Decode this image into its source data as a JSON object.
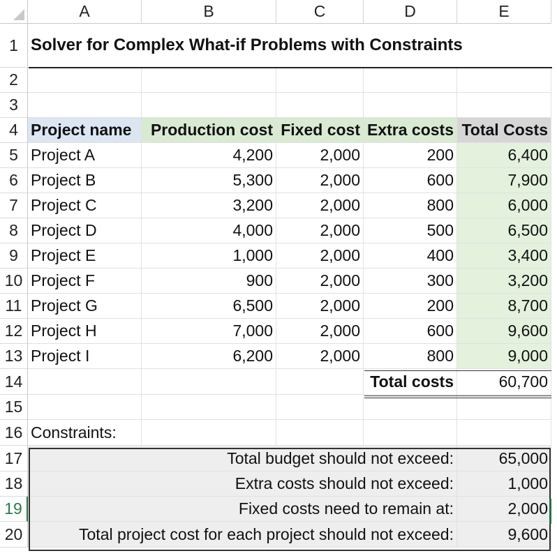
{
  "columns": [
    "A",
    "B",
    "C",
    "D",
    "E"
  ],
  "row_numbers": [
    "1",
    "2",
    "3",
    "4",
    "5",
    "6",
    "7",
    "8",
    "9",
    "10",
    "11",
    "12",
    "13",
    "14",
    "15",
    "16",
    "17",
    "18",
    "19",
    "20"
  ],
  "title": "Solver for Complex What-if Problems with Constraints",
  "table": {
    "headers": [
      "Project name",
      "Production cost",
      "Fixed cost",
      "Extra costs",
      "Total Costs"
    ],
    "rows": [
      [
        "Project A",
        "4,200",
        "2,000",
        "200",
        "6,400"
      ],
      [
        "Project B",
        "5,300",
        "2,000",
        "600",
        "7,900"
      ],
      [
        "Project C",
        "3,200",
        "2,000",
        "800",
        "6,000"
      ],
      [
        "Project D",
        "4,000",
        "2,000",
        "500",
        "6,500"
      ],
      [
        "Project E",
        "1,000",
        "2,000",
        "400",
        "3,400"
      ],
      [
        "Project F",
        "900",
        "2,000",
        "300",
        "3,200"
      ],
      [
        "Project G",
        "6,500",
        "2,000",
        "200",
        "8,700"
      ],
      [
        "Project H",
        "7,000",
        "2,000",
        "600",
        "9,600"
      ],
      [
        "Project I",
        "6,200",
        "2,000",
        "800",
        "9,000"
      ]
    ],
    "total_label": "Total costs",
    "total_value": "60,700"
  },
  "constraints": {
    "label": "Constraints:",
    "items": [
      {
        "text": "Total budget should not exceed:",
        "value": "65,000"
      },
      {
        "text": "Extra costs should not exceed:",
        "value": "1,000"
      },
      {
        "text": "Fixed costs need to remain at:",
        "value": "2,000"
      },
      {
        "text": "Total project cost for each project should not exceed:",
        "value": "9,600"
      }
    ]
  },
  "selected_row": "19",
  "colors": {
    "header_blue": "#dce6f2",
    "header_green": "#d9ead3",
    "header_gray": "#d6d6d6",
    "total_fill": "#e4f1dd",
    "constraint_fill": "#eeeeee",
    "selection_green": "#217346"
  }
}
